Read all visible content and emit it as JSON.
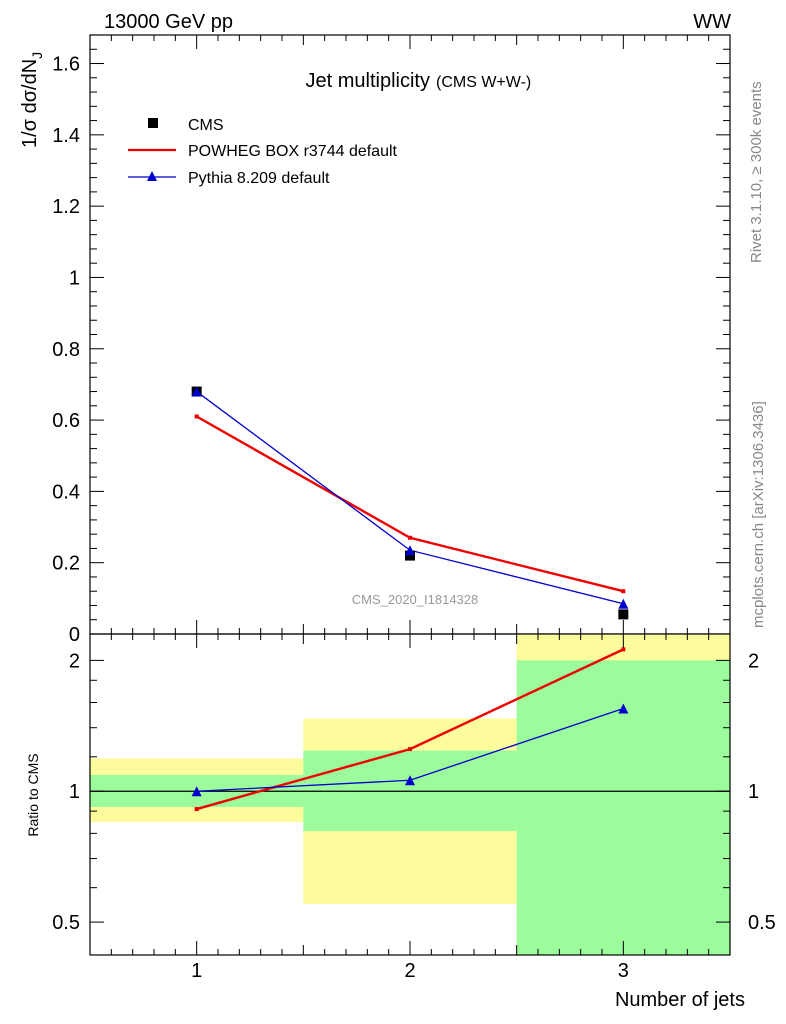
{
  "header": {
    "energy_label": "13000 GeV pp",
    "process_label": "WW"
  },
  "side_text": {
    "rivet": "Rivet 3.1.10, ≥ 300k events",
    "mcplots": "mcplots.cern.ch [arXiv:1306.3436]"
  },
  "watermark": "CMS_2020_I1814328",
  "colors": {
    "data": "#000000",
    "powheg": "#ee0000",
    "pythia": "#0000cc",
    "band_inner": "#9cfc9c",
    "band_outer": "#fcfc9c"
  },
  "chart_data": {
    "type": "line",
    "title": "Jet multiplicity",
    "subtitle": "(CMS W+W-)",
    "xlabel": "Number of jets",
    "ylabel": "1/σ dσ/dN",
    "ylabel_sub": "J",
    "xlim": [
      0.5,
      3.5
    ],
    "ylim": [
      0,
      1.68
    ],
    "xticks": [
      1,
      2,
      3
    ],
    "xtick_labels": [
      "1",
      "2",
      "3"
    ],
    "yticks": [
      0,
      0.2,
      0.4,
      0.6,
      0.8,
      1,
      1.2,
      1.4,
      1.6
    ],
    "ytick_labels": [
      "0",
      "0.2",
      "0.4",
      "0.6",
      "0.8",
      "1",
      "1.2",
      "1.4",
      "1.6"
    ],
    "x": [
      1,
      2,
      3
    ],
    "bin_edges": [
      0.5,
      1.5,
      2.5,
      3.5
    ],
    "series": [
      {
        "name": "CMS",
        "kind": "data",
        "values": [
          0.68,
          0.22,
          0.055
        ]
      },
      {
        "name": "POWHEG BOX r3744 default",
        "kind": "line",
        "values": [
          0.61,
          0.27,
          0.12
        ]
      },
      {
        "name": "Pythia 8.209 default",
        "kind": "line-marker",
        "values": [
          0.68,
          0.235,
          0.085
        ]
      }
    ],
    "ratio": {
      "ylabel": "Ratio to CMS",
      "scale": "log",
      "ylim": [
        0.42,
        2.3
      ],
      "yticks": [
        0.5,
        1,
        2
      ],
      "ytick_labels": [
        "0.5",
        "1",
        "2"
      ],
      "reference": 1,
      "series": [
        {
          "name": "POWHEG BOX r3744 default",
          "values": [
            0.91,
            1.25,
            2.12
          ]
        },
        {
          "name": "Pythia 8.209 default",
          "values": [
            1.0,
            1.06,
            1.55
          ]
        }
      ],
      "uncertainty_bands": {
        "inner": [
          [
            0.92,
            1.09
          ],
          [
            0.81,
            1.24
          ],
          [
            0.42,
            2.0
          ]
        ],
        "outer": [
          [
            0.85,
            1.19
          ],
          [
            0.55,
            1.47
          ],
          [
            0.42,
            2.3
          ]
        ]
      }
    }
  }
}
